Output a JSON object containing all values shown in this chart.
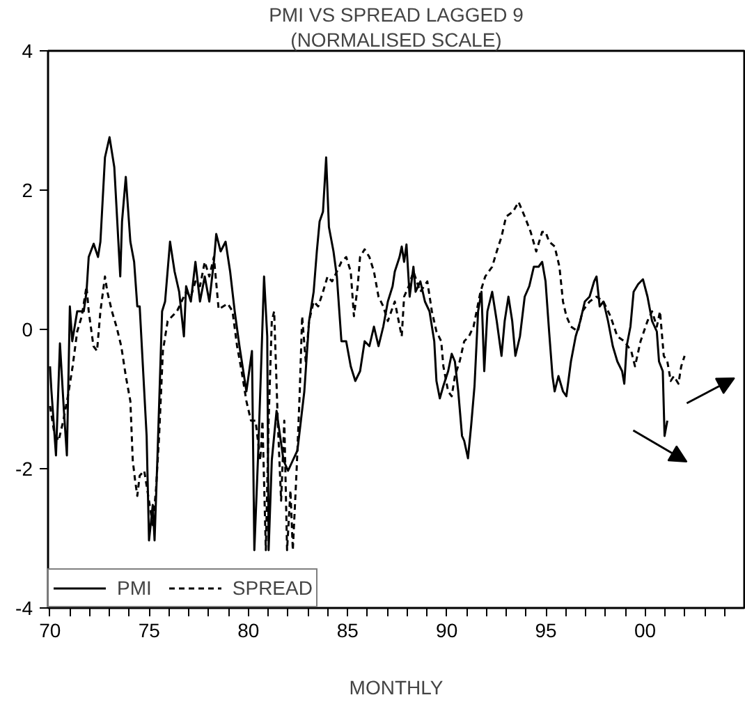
{
  "chart_data": {
    "type": "line",
    "title": "PMI VS SPREAD LAGGED 9",
    "subtitle": "(NORMALISED SCALE)",
    "xlabel": "MONTHLY",
    "xlim": [
      1969.9,
      2005
    ],
    "ylim": [
      -4,
      4
    ],
    "yticks": [
      -4,
      -2,
      0,
      2,
      4
    ],
    "xticks": [
      {
        "value": 1970,
        "label": "70"
      },
      {
        "value": 1971,
        "label": null
      },
      {
        "value": 1972,
        "label": null
      },
      {
        "value": 1973,
        "label": null
      },
      {
        "value": 1974,
        "label": null
      },
      {
        "value": 1975,
        "label": "75"
      },
      {
        "value": 1976,
        "label": null
      },
      {
        "value": 1977,
        "label": null
      },
      {
        "value": 1978,
        "label": null
      },
      {
        "value": 1979,
        "label": null
      },
      {
        "value": 1980,
        "label": "80"
      },
      {
        "value": 1981,
        "label": null
      },
      {
        "value": 1982,
        "label": null
      },
      {
        "value": 1983,
        "label": null
      },
      {
        "value": 1984,
        "label": null
      },
      {
        "value": 1985,
        "label": "85"
      },
      {
        "value": 1986,
        "label": null
      },
      {
        "value": 1987,
        "label": null
      },
      {
        "value": 1988,
        "label": null
      },
      {
        "value": 1989,
        "label": null
      },
      {
        "value": 1990,
        "label": "90"
      },
      {
        "value": 1991,
        "label": null
      },
      {
        "value": 1992,
        "label": null
      },
      {
        "value": 1993,
        "label": null
      },
      {
        "value": 1994,
        "label": null
      },
      {
        "value": 1995,
        "label": "95"
      },
      {
        "value": 1996,
        "label": null
      },
      {
        "value": 1997,
        "label": null
      },
      {
        "value": 1998,
        "label": null
      },
      {
        "value": 1999,
        "label": null
      },
      {
        "value": 2000,
        "label": "00"
      },
      {
        "value": 2001,
        "label": null
      },
      {
        "value": 2002,
        "label": null
      },
      {
        "value": 2003,
        "label": null
      },
      {
        "value": 2004,
        "label": null
      }
    ],
    "grid": false,
    "legend": "bottom left",
    "marker": "none",
    "series": [
      {
        "name": "PMI",
        "color": "#000000",
        "line_style": "solid",
        "x": [
          1970.0,
          1970.07,
          1970.3,
          1970.5,
          1970.7,
          1970.85,
          1971.0,
          1971.12,
          1971.37,
          1971.7,
          1971.84,
          1971.95,
          1972.2,
          1972.42,
          1972.54,
          1972.77,
          1973.0,
          1973.24,
          1973.35,
          1973.54,
          1973.63,
          1973.82,
          1974.05,
          1974.24,
          1974.4,
          1974.52,
          1974.87,
          1974.99,
          1975.18,
          1975.27,
          1975.41,
          1975.65,
          1975.8,
          1976.05,
          1976.28,
          1976.51,
          1976.75,
          1976.86,
          1977.1,
          1977.33,
          1977.56,
          1977.8,
          1978.03,
          1978.26,
          1978.38,
          1978.6,
          1978.85,
          1979.08,
          1979.31,
          1979.55,
          1979.9,
          1980.18,
          1980.3,
          1980.48,
          1980.65,
          1980.79,
          1980.95,
          1981.02,
          1981.18,
          1981.42,
          1981.77,
          1982.0,
          1982.24,
          1982.47,
          1982.82,
          1983.06,
          1983.29,
          1983.45,
          1983.59,
          1983.76,
          1983.92,
          1984.06,
          1984.29,
          1984.46,
          1984.69,
          1984.93,
          1985.16,
          1985.39,
          1985.63,
          1985.86,
          1986.1,
          1986.33,
          1986.56,
          1986.8,
          1987.03,
          1987.27,
          1987.38,
          1987.62,
          1987.73,
          1987.85,
          1987.97,
          1988.13,
          1988.32,
          1988.43,
          1988.67,
          1988.9,
          1989.13,
          1989.37,
          1989.48,
          1989.65,
          1989.83,
          1990.07,
          1990.25,
          1990.41,
          1990.58,
          1990.77,
          1990.88,
          1991.07,
          1991.23,
          1991.4,
          1991.58,
          1991.75,
          1991.89,
          1992.05,
          1992.29,
          1992.52,
          1992.76,
          1992.92,
          1993.11,
          1993.3,
          1993.46,
          1993.69,
          1993.93,
          1994.16,
          1994.39,
          1994.63,
          1994.81,
          1994.98,
          1995.16,
          1995.33,
          1995.44,
          1995.63,
          1995.86,
          1996.03,
          1996.26,
          1996.5,
          1996.73,
          1996.96,
          1997.2,
          1997.43,
          1997.55,
          1997.71,
          1997.9,
          1998.13,
          1998.37,
          1998.6,
          1998.84,
          1998.95,
          1999.07,
          1999.26,
          1999.42,
          1999.65,
          1999.89,
          2000.12,
          2000.35,
          2000.59,
          2000.7,
          2000.89,
          2000.98,
          2001.12
        ],
        "values": [
          -0.53,
          -0.88,
          -1.81,
          -0.2,
          -1.17,
          -1.81,
          0.33,
          -0.17,
          0.26,
          0.26,
          0.54,
          1.04,
          1.23,
          1.04,
          1.26,
          2.47,
          2.76,
          2.33,
          1.76,
          0.76,
          1.55,
          2.19,
          1.26,
          0.97,
          0.33,
          0.33,
          -1.53,
          -3.03,
          -2.52,
          -3.03,
          -1.88,
          0.26,
          0.4,
          1.26,
          0.83,
          0.54,
          -0.1,
          0.62,
          0.4,
          0.97,
          0.4,
          0.76,
          0.4,
          0.97,
          1.37,
          1.12,
          1.26,
          0.83,
          0.26,
          -0.24,
          -0.89,
          -0.31,
          -3.17,
          -1.88,
          -0.46,
          0.76,
          -0.1,
          -3.17,
          -1.88,
          -1.17,
          -1.88,
          -2.03,
          -1.88,
          -1.74,
          -0.89,
          0.12,
          0.54,
          1.12,
          1.55,
          1.69,
          2.47,
          1.47,
          1.12,
          0.76,
          -0.17,
          -0.17,
          -0.53,
          -0.74,
          -0.6,
          -0.17,
          -0.24,
          0.04,
          -0.24,
          0.04,
          0.4,
          0.62,
          0.83,
          1.04,
          1.19,
          0.97,
          1.22,
          0.47,
          0.9,
          0.54,
          0.69,
          0.4,
          0.26,
          -0.17,
          -0.74,
          -0.99,
          -0.81,
          -0.6,
          -0.35,
          -0.46,
          -0.89,
          -1.53,
          -1.6,
          -1.85,
          -1.38,
          -0.81,
          0.26,
          0.54,
          -0.6,
          0.26,
          0.54,
          0.12,
          -0.38,
          0.12,
          0.47,
          0.12,
          -0.38,
          -0.1,
          0.47,
          0.62,
          0.9,
          0.9,
          0.97,
          0.69,
          -0.03,
          -0.67,
          -0.89,
          -0.67,
          -0.89,
          -0.96,
          -0.46,
          -0.1,
          0.12,
          0.4,
          0.47,
          0.69,
          0.76,
          0.33,
          0.4,
          0.12,
          -0.24,
          -0.46,
          -0.6,
          -0.78,
          -0.24,
          0.04,
          0.54,
          0.65,
          0.72,
          0.47,
          0.12,
          -0.03,
          -0.46,
          -0.6,
          -1.53,
          -1.31
        ]
      },
      {
        "name": "SPREAD",
        "color": "#000000",
        "line_style": "dashed",
        "x": [
          1970.0,
          1970.2,
          1970.43,
          1970.67,
          1970.9,
          1971.14,
          1971.37,
          1971.6,
          1971.84,
          1971.95,
          1972.19,
          1972.37,
          1972.54,
          1972.77,
          1972.89,
          1973.12,
          1973.35,
          1973.59,
          1973.82,
          1974.05,
          1974.17,
          1974.29,
          1974.4,
          1974.52,
          1974.75,
          1974.99,
          1975.18,
          1975.34,
          1975.5,
          1975.69,
          1975.93,
          1976.16,
          1976.4,
          1976.63,
          1976.86,
          1977.1,
          1977.33,
          1977.56,
          1977.8,
          1978.03,
          1978.26,
          1978.5,
          1978.96,
          1979.2,
          1979.43,
          1979.66,
          1979.9,
          1980.13,
          1980.36,
          1980.6,
          1980.71,
          1980.88,
          1981.02,
          1981.18,
          1981.3,
          1981.48,
          1981.65,
          1981.81,
          1981.95,
          1982.12,
          1982.24,
          1982.43,
          1982.59,
          1982.71,
          1982.89,
          1983.06,
          1983.29,
          1983.52,
          1983.76,
          1983.99,
          1984.22,
          1984.46,
          1984.69,
          1984.93,
          1985.16,
          1985.32,
          1985.51,
          1985.63,
          1985.86,
          1986.1,
          1986.33,
          1986.56,
          1986.8,
          1987.03,
          1987.38,
          1987.73,
          1987.85,
          1988.08,
          1988.32,
          1988.67,
          1989.02,
          1989.25,
          1989.48,
          1989.72,
          1989.83,
          1990.07,
          1990.25,
          1990.41,
          1990.65,
          1990.88,
          1991.12,
          1991.35,
          1991.7,
          1991.94,
          1992.29,
          1992.52,
          1992.76,
          1992.99,
          1993.34,
          1993.62,
          1993.93,
          1994.23,
          1994.51,
          1994.81,
          1994.98,
          1995.16,
          1995.44,
          1995.68,
          1995.86,
          1996.03,
          1996.26,
          1996.61,
          1996.84,
          1997.2,
          1997.55,
          1997.9,
          1998.25,
          1998.6,
          1998.95,
          1999.3,
          1999.49,
          1999.77,
          2000.12,
          2000.35,
          2000.59,
          2000.75,
          2000.94,
          2001.12,
          2001.29,
          2001.45,
          2001.68,
          2001.82,
          2001.99
        ],
        "values": [
          -1.1,
          -1.46,
          -1.6,
          -1.31,
          -0.96,
          -0.53,
          -0.03,
          0.19,
          0.62,
          0.26,
          -0.24,
          -0.31,
          0.26,
          0.76,
          0.54,
          0.26,
          0.04,
          -0.24,
          -0.67,
          -1.03,
          -1.88,
          -2.17,
          -2.39,
          -2.1,
          -2.03,
          -2.46,
          -2.81,
          -2.31,
          -1.53,
          -0.31,
          0.12,
          0.19,
          0.26,
          0.4,
          0.54,
          0.47,
          0.69,
          0.62,
          0.97,
          0.76,
          1.04,
          0.29,
          0.37,
          0.26,
          -0.24,
          -0.6,
          -1.03,
          -1.31,
          -1.31,
          -1.88,
          -1.31,
          -3.17,
          -1.31,
          0.12,
          0.26,
          -1.31,
          -2.46,
          -1.31,
          -3.17,
          -2.31,
          -3.17,
          -2.03,
          -0.89,
          0.19,
          -0.46,
          0.12,
          0.4,
          0.33,
          0.54,
          0.76,
          0.69,
          0.83,
          0.97,
          1.04,
          0.83,
          0.19,
          0.62,
          1.04,
          1.15,
          1.04,
          0.83,
          0.47,
          0.33,
          0.12,
          0.4,
          -0.1,
          0.47,
          0.62,
          0.83,
          0.54,
          0.69,
          0.26,
          -0.03,
          -0.17,
          -0.53,
          -0.89,
          -0.96,
          -0.67,
          -0.46,
          -0.17,
          -0.1,
          0.04,
          0.54,
          0.76,
          0.9,
          1.12,
          1.33,
          1.62,
          1.69,
          1.83,
          1.62,
          1.4,
          1.12,
          1.4,
          1.4,
          1.26,
          1.19,
          0.9,
          0.4,
          0.19,
          0.04,
          -0.03,
          0.26,
          0.4,
          0.47,
          0.4,
          0.19,
          -0.1,
          -0.17,
          -0.31,
          -0.53,
          -0.17,
          0.12,
          0.26,
          0.04,
          0.26,
          -0.38,
          -0.46,
          -0.74,
          -0.67,
          -0.78,
          -0.53,
          -0.38
        ]
      }
    ]
  }
}
